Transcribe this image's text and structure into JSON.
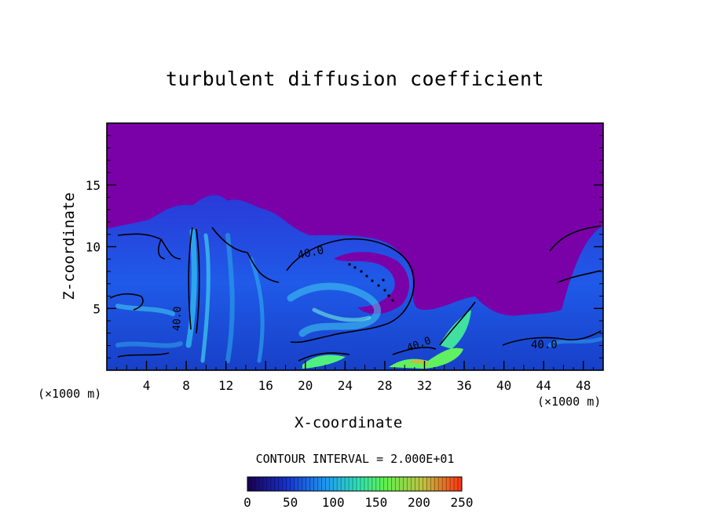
{
  "chart_data": {
    "type": "heatmap",
    "title": "turbulent diffusion coefficient",
    "xlabel": "X-coordinate",
    "ylabel": "Z-coordinate",
    "x_unit": "(×1000 m)",
    "y_unit": "(×1000 m)",
    "xlim": [
      0,
      50
    ],
    "ylim": [
      0,
      20
    ],
    "x_ticks": [
      4,
      8,
      12,
      16,
      20,
      24,
      28,
      32,
      36,
      40,
      44,
      48
    ],
    "y_ticks": [
      5,
      10,
      15
    ],
    "contour_interval_label": "CONTOUR INTERVAL = 2.000E+01",
    "contour_labels": [
      "40.0",
      "40.0",
      "40.0",
      "40.0"
    ],
    "colorbar": {
      "ticks": [
        0,
        50,
        100,
        150,
        200,
        250
      ],
      "range": [
        0,
        250
      ],
      "colors": [
        "#1a0050",
        "#1530d0",
        "#20a0f0",
        "#30e0b0",
        "#60f050",
        "#c0c040",
        "#ff3010"
      ]
    },
    "background_color": "#7a00a8"
  }
}
